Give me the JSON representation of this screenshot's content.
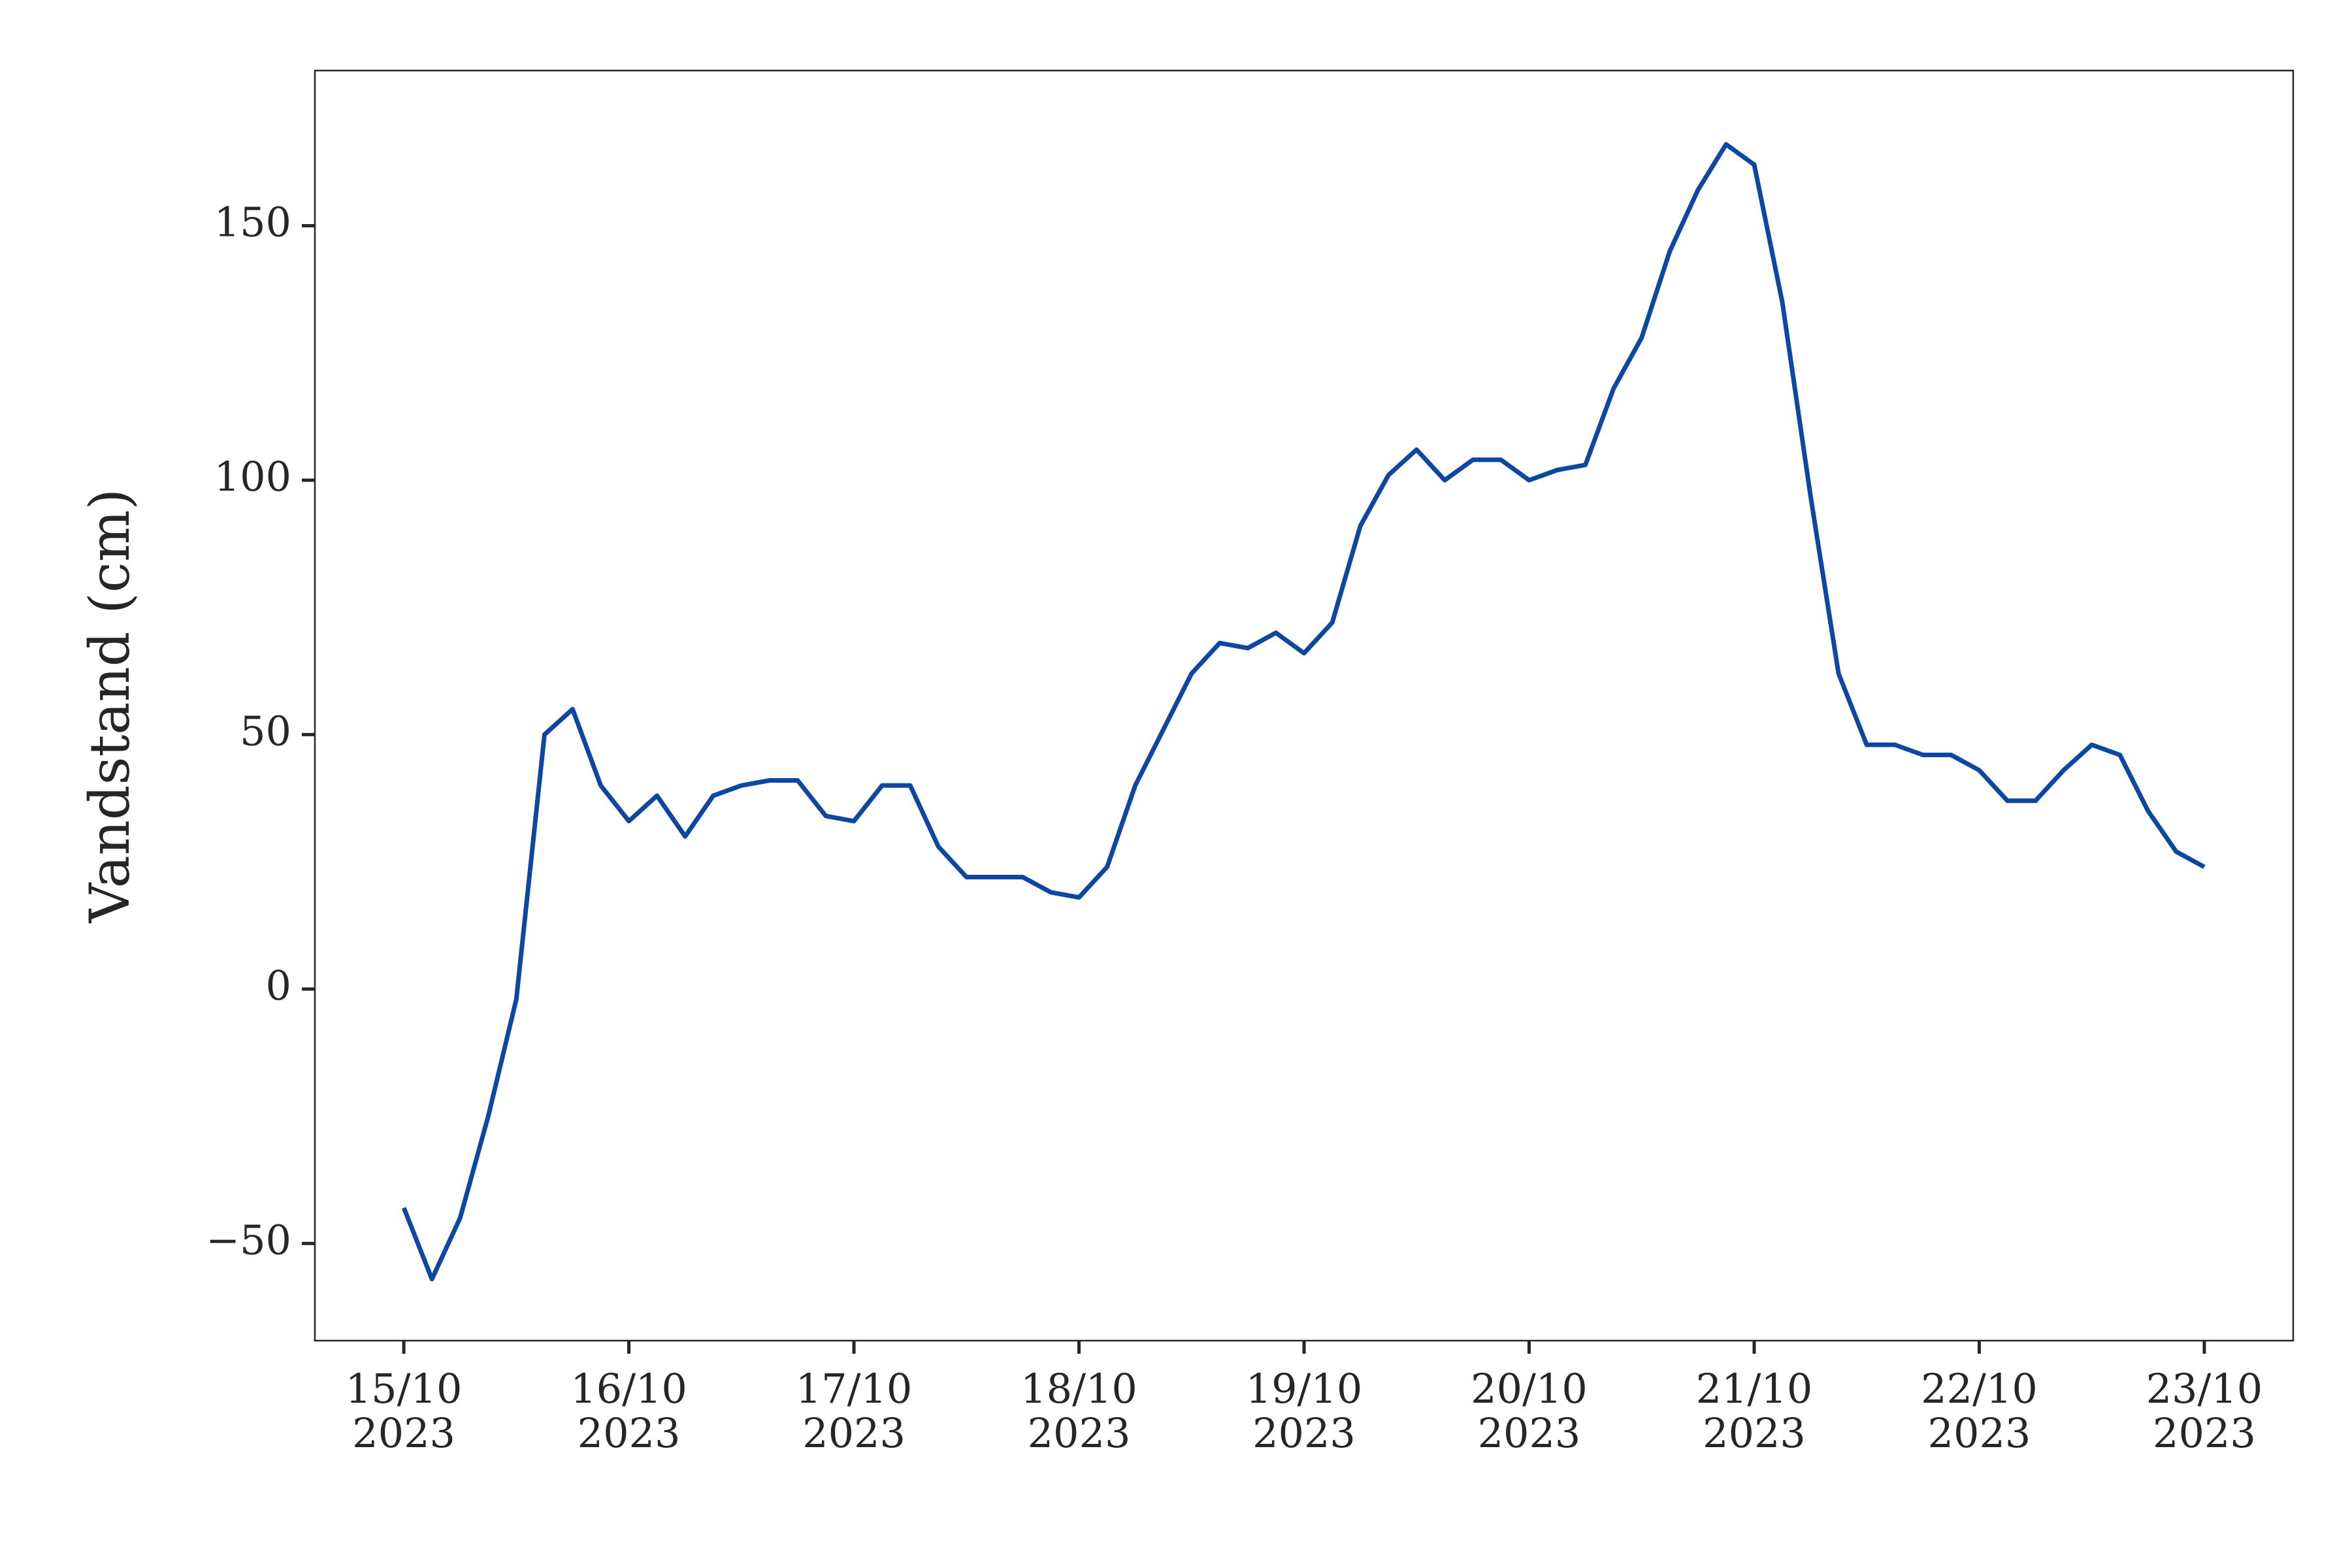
{
  "chart_data": {
    "type": "line",
    "ylabel": "Vandstand (cm)",
    "x": [
      0,
      0.125,
      0.25,
      0.375,
      0.5,
      0.625,
      0.75,
      0.875,
      1,
      1.125,
      1.25,
      1.375,
      1.5,
      1.625,
      1.75,
      1.875,
      2,
      2.125,
      2.25,
      2.375,
      2.5,
      2.625,
      2.75,
      2.875,
      3,
      3.125,
      3.25,
      3.375,
      3.5,
      3.625,
      3.75,
      3.875,
      4,
      4.125,
      4.25,
      4.375,
      4.5,
      4.625,
      4.75,
      4.875,
      5,
      5.125,
      5.25,
      5.375,
      5.5,
      5.625,
      5.75,
      5.875,
      6,
      6.125,
      6.25,
      6.375,
      6.5,
      6.625,
      6.75,
      6.875,
      7,
      7.125,
      7.25,
      7.375,
      7.5,
      7.625,
      7.75,
      7.875,
      8
    ],
    "series": [
      {
        "color": "#0d47a1",
        "values": [
          -43,
          -57,
          -45,
          -25,
          -2,
          50,
          55,
          40,
          33,
          38,
          30,
          38,
          40,
          41,
          41,
          34,
          33,
          40,
          40,
          28,
          22,
          22,
          22,
          19,
          18,
          24,
          40,
          51,
          62,
          68,
          67,
          70,
          66,
          72,
          91,
          101,
          106,
          100,
          104,
          104,
          100,
          102,
          103,
          118,
          128,
          145,
          157,
          166,
          162,
          135,
          97,
          62,
          48,
          48,
          46,
          46,
          43,
          37,
          37,
          43,
          48,
          46,
          35,
          27,
          24
        ]
      }
    ],
    "xlim": [
      -0.395,
      8.395
    ],
    "xticks": [
      {
        "value": 0,
        "label": "15/10\n2023"
      },
      {
        "value": 1,
        "label": "16/10\n2023"
      },
      {
        "value": 2,
        "label": "17/10\n2023"
      },
      {
        "value": 3,
        "label": "18/10\n2023"
      },
      {
        "value": 4,
        "label": "19/10\n2023"
      },
      {
        "value": 5,
        "label": "20/10\n2023"
      },
      {
        "value": 6,
        "label": "21/10\n2023"
      },
      {
        "value": 7,
        "label": "22/10\n2023"
      },
      {
        "value": 8,
        "label": "23/10\n2023"
      }
    ],
    "ylim": [
      -69.1,
      180.5
    ],
    "yticks": [
      {
        "value": -50,
        "label": "−50"
      },
      0,
      50,
      100,
      150
    ],
    "grid": false
  }
}
